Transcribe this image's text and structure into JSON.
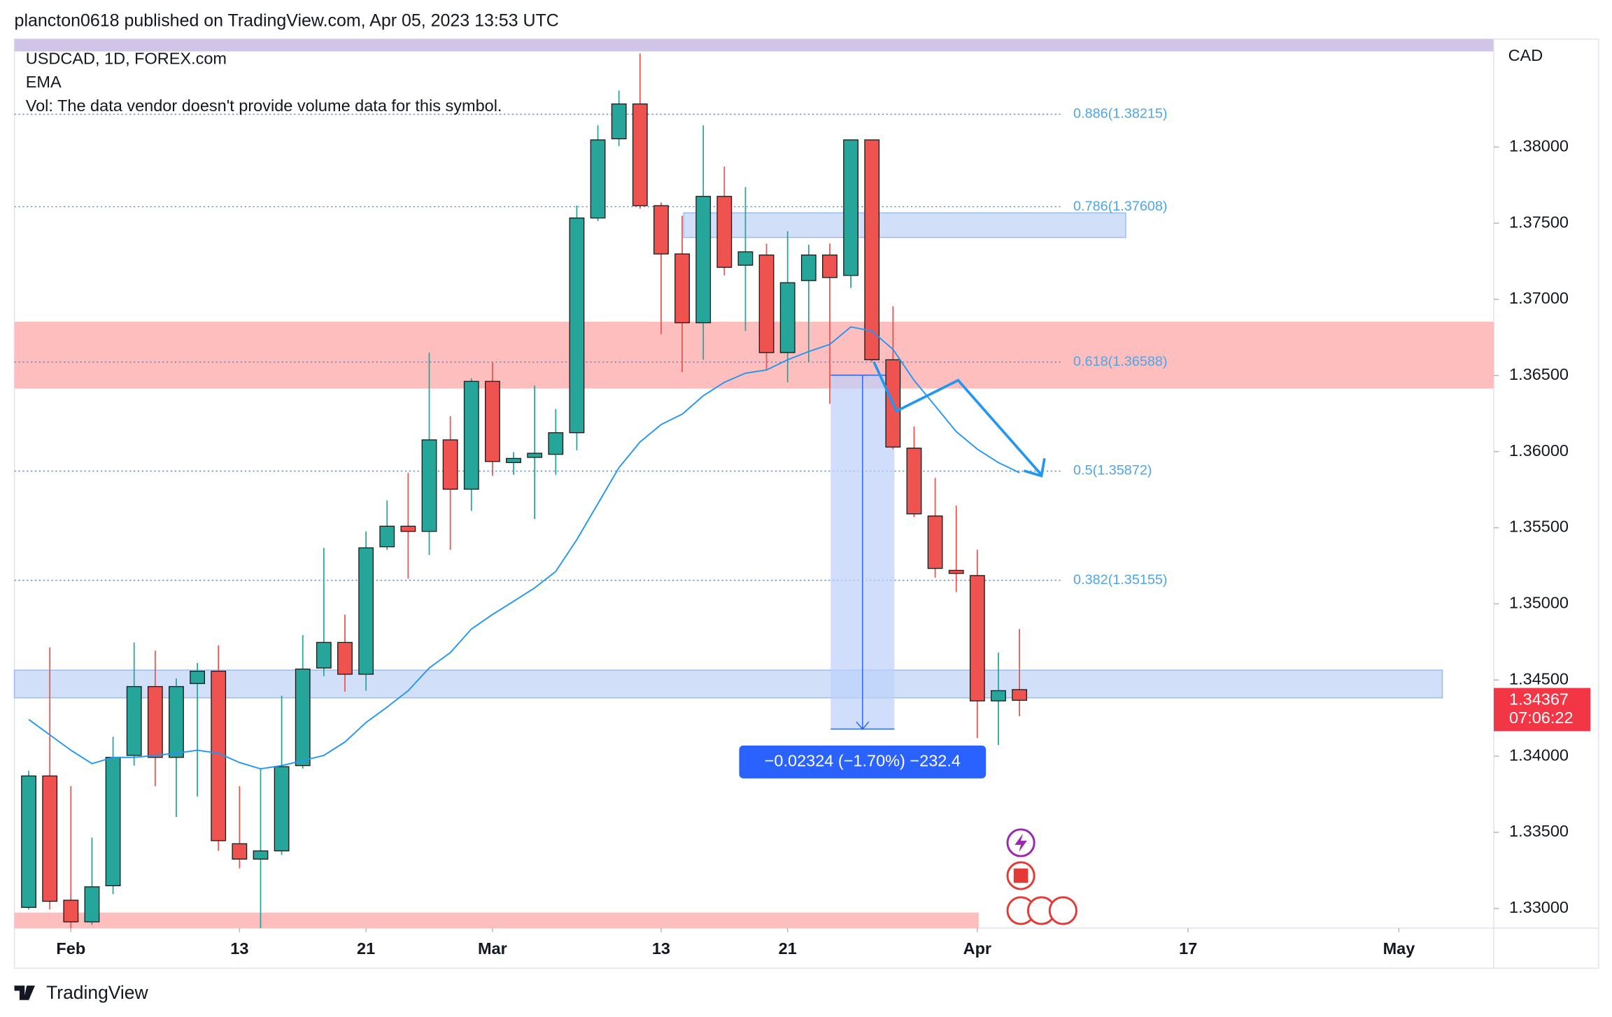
{
  "header": "plancton0618 published on TradingView.com, Apr 05, 2023 13:53 UTC",
  "footer": {
    "brand": "TradingView"
  },
  "chart_data": {
    "type": "candlestick",
    "symbol": "USDCAD, 1D, FOREX.com",
    "volume_note": "Vol: The data vendor doesn't provide volume data for this symbol.",
    "currency": "CAD",
    "x": [
      0,
      1,
      2,
      3,
      4,
      5,
      6,
      7,
      8,
      9,
      10,
      11,
      12,
      13,
      14,
      15,
      16,
      17,
      18,
      19,
      20,
      21,
      22,
      23,
      24,
      25,
      26,
      27,
      28,
      29,
      30,
      31,
      32,
      33,
      34,
      35,
      36,
      37,
      38,
      39,
      40,
      41,
      42,
      43,
      44,
      45,
      46,
      47
    ],
    "xlim": [
      -0.68,
      69.5
    ],
    "xticks": [
      {
        "value": 2,
        "label": "Feb"
      },
      {
        "value": 10,
        "label": "13"
      },
      {
        "value": 16,
        "label": "21"
      },
      {
        "value": 22,
        "label": "Mar"
      },
      {
        "value": 30,
        "label": "13"
      },
      {
        "value": 36,
        "label": "21"
      },
      {
        "value": 45,
        "label": "Apr"
      },
      {
        "value": 55,
        "label": "17"
      },
      {
        "value": 65,
        "label": "May"
      }
    ],
    "ylim": [
      1.32871,
      1.38709
    ],
    "yticks": [
      {
        "value": 1.33,
        "label": "1.33000"
      },
      {
        "value": 1.335,
        "label": "1.33500"
      },
      {
        "value": 1.34,
        "label": "1.34000"
      },
      {
        "value": 1.345,
        "label": "1.34500"
      },
      {
        "value": 1.35,
        "label": "1.35000"
      },
      {
        "value": 1.355,
        "label": "1.35500"
      },
      {
        "value": 1.36,
        "label": "1.36000"
      },
      {
        "value": 1.365,
        "label": "1.36500"
      },
      {
        "value": 1.37,
        "label": "1.37000"
      },
      {
        "value": 1.375,
        "label": "1.37500"
      },
      {
        "value": 1.38,
        "label": "1.38000"
      }
    ],
    "up_color": "#26a69a",
    "down_color": "#ef5350",
    "series": {
      "open": [
        1.33007,
        1.3387,
        1.33054,
        1.32912,
        1.33149,
        1.34005,
        1.34457,
        1.33992,
        1.34477,
        1.34558,
        1.33425,
        1.33324,
        1.33378,
        1.33938,
        1.34579,
        1.34747,
        1.34538,
        1.35375,
        1.3551,
        1.35476,
        1.36077,
        1.35753,
        1.36461,
        1.35928,
        1.35962,
        1.35982,
        1.36124,
        1.37534,
        1.38054,
        1.38283,
        1.37615,
        1.37298,
        1.36846,
        1.37676,
        1.37224,
        1.37291,
        1.3665,
        1.37123,
        1.37291,
        1.37157,
        1.38047,
        1.36603,
        1.36023,
        1.35577,
        1.3522,
        1.35186,
        1.34363,
        1.34437
      ],
      "high": [
        1.33904,
        1.34714,
        1.33803,
        1.33465,
        1.34127,
        1.34747,
        1.34693,
        1.34511,
        1.34612,
        1.34727,
        1.33803,
        1.33918,
        1.34397,
        1.34795,
        1.35368,
        1.3493,
        1.35476,
        1.35679,
        1.35861,
        1.3665,
        1.36232,
        1.36482,
        1.3659,
        1.35996,
        1.36434,
        1.36279,
        1.37615,
        1.38142,
        1.38371,
        1.38614,
        1.37636,
        1.37548,
        1.38142,
        1.37872,
        1.37737,
        1.37366,
        1.37447,
        1.37359,
        1.37366,
        1.38047,
        1.38047,
        1.36954,
        1.36165,
        1.35827,
        1.35645,
        1.35355,
        1.3468,
        1.34835
      ],
      "low": [
        1.32993,
        1.32993,
        1.3287,
        1.32892,
        1.33094,
        1.33938,
        1.33803,
        1.336,
        1.33735,
        1.33378,
        1.33263,
        1.3287,
        1.33351,
        1.33918,
        1.34525,
        1.34424,
        1.3443,
        1.35355,
        1.35166,
        1.35321,
        1.35355,
        1.35611,
        1.35841,
        1.35848,
        1.35557,
        1.35848,
        1.36009,
        1.37514,
        1.38007,
        1.37595,
        1.36772,
        1.36522,
        1.36603,
        1.37157,
        1.36792,
        1.36536,
        1.36455,
        1.3659,
        1.36313,
        1.37075,
        1.3659,
        1.36016,
        1.3557,
        1.35172,
        1.35078,
        1.3412,
        1.34073,
        1.34262
      ],
      "close": [
        1.3387,
        1.33047,
        1.32912,
        1.33142,
        1.33992,
        1.34457,
        1.33992,
        1.34457,
        1.34558,
        1.33445,
        1.33324,
        1.33378,
        1.33931,
        1.34572,
        1.34747,
        1.34538,
        1.35368,
        1.3551,
        1.35476,
        1.36077,
        1.35753,
        1.36461,
        1.35935,
        1.35955,
        1.35989,
        1.36124,
        1.37534,
        1.38047,
        1.38283,
        1.37615,
        1.37298,
        1.36846,
        1.37676,
        1.3721,
        1.37312,
        1.3665,
        1.37109,
        1.37291,
        1.37143,
        1.38047,
        1.36603,
        1.3603,
        1.35591,
        1.35233,
        1.352,
        1.34363,
        1.3443,
        1.34367
      ]
    },
    "ema": {
      "name": "EMA",
      "color": "#2196f3",
      "values": [
        1.34241,
        1.3414,
        1.34039,
        1.33951,
        1.33992,
        1.33992,
        1.34005,
        1.34019,
        1.34039,
        1.34019,
        1.33958,
        1.33917,
        1.33938,
        1.33971,
        1.34005,
        1.34093,
        1.34221,
        1.34322,
        1.3443,
        1.34579,
        1.3468,
        1.34835,
        1.3493,
        1.35017,
        1.35105,
        1.35213,
        1.35422,
        1.35658,
        1.35895,
        1.36063,
        1.36178,
        1.36246,
        1.36367,
        1.36455,
        1.36515,
        1.36536,
        1.36603,
        1.36657,
        1.36704,
        1.36819,
        1.36792,
        1.36671,
        1.36468,
        1.363,
        1.36131,
        1.36016,
        1.35928,
        1.35861
      ]
    },
    "fib_levels": [
      {
        "price": 1.38215,
        "label": "0.886(1.38215)"
      },
      {
        "price": 1.37608,
        "label": "0.786(1.37608)"
      },
      {
        "price": 1.36588,
        "label": "0.618(1.36588)"
      },
      {
        "price": 1.35872,
        "label": "0.5(1.35872)"
      },
      {
        "price": 1.35155,
        "label": "0.382(1.35155)"
      }
    ],
    "zones": [
      {
        "top": 1.36853,
        "bottom": 1.36414,
        "color": "#ffb3b3"
      },
      {
        "top": 1.37568,
        "bottom": 1.37406,
        "color": "#c9d9f7"
      },
      {
        "top": 1.34565,
        "bottom": 1.34383,
        "color": "#c9d9f7"
      },
      {
        "top": 1.32973,
        "bottom": 1.32871,
        "color": "#ffb3b3"
      }
    ],
    "measure": {
      "from": 1.36502,
      "to": 1.34178,
      "label": "−0.02324 (−1.70%) −232.4"
    },
    "countdown": "07:06:22"
  }
}
